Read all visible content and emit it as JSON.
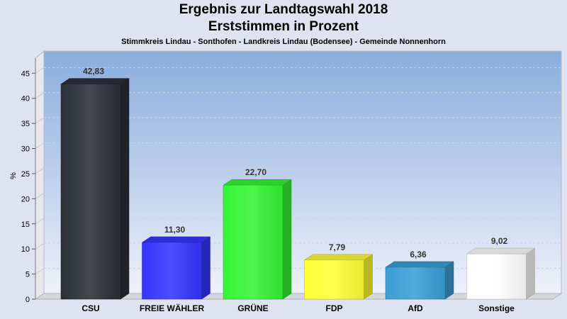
{
  "chart_data": {
    "type": "bar",
    "title": "Ergebnis zur Landtagswahl 2018",
    "subtitle": "Erststimmen in Prozent",
    "caption": "Stimmkreis Lindau - Sonthofen - Landkreis Lindau (Bodensee) - Gemeinde Nonnenhorn",
    "xlabel": "",
    "ylabel": "%",
    "ylim": [
      0,
      48
    ],
    "yticks": [
      0,
      5,
      10,
      15,
      20,
      25,
      30,
      35,
      40,
      45
    ],
    "grid": true,
    "categories": [
      "CSU",
      "FREIE WÄHLER",
      "GRÜNE",
      "FDP",
      "AfD",
      "Sonstige"
    ],
    "values": [
      42.83,
      11.3,
      22.7,
      7.79,
      6.36,
      9.02
    ],
    "value_labels": [
      "42,83",
      "11,30",
      "22,70",
      "7,79",
      "6,36",
      "9,02"
    ],
    "colors": [
      "#2b2f38",
      "#3535ff",
      "#35f535",
      "#ffff35",
      "#3a9fd6",
      "#ffffff"
    ]
  }
}
